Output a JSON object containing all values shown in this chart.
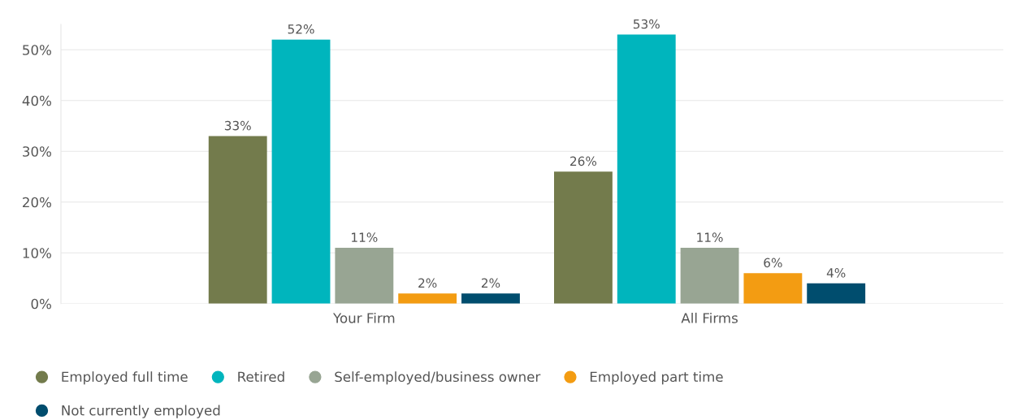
{
  "chart_data": {
    "type": "bar",
    "categories": [
      "Your Firm",
      "All Firms"
    ],
    "series": [
      {
        "name": "Employed full time",
        "color": "#737b4c",
        "values": [
          33,
          26
        ],
        "value_labels": [
          "33%",
          "26%"
        ]
      },
      {
        "name": "Retired",
        "color": "#00b5bd",
        "values": [
          52,
          53
        ],
        "value_labels": [
          "52%",
          "53%"
        ]
      },
      {
        "name": "Self-employed/business owner",
        "color": "#98a593",
        "values": [
          11,
          11
        ],
        "value_labels": [
          "11%",
          "11%"
        ]
      },
      {
        "name": "Employed part time",
        "color": "#f39c12",
        "values": [
          2,
          6
        ],
        "value_labels": [
          "2%",
          "6%"
        ]
      },
      {
        "name": "Not currently employed",
        "color": "#004d6e",
        "values": [
          2,
          4
        ],
        "value_labels": [
          "2%",
          "4%"
        ]
      }
    ],
    "ylim": [
      0,
      55
    ],
    "yticks": [
      {
        "value": 0,
        "label": "0%"
      },
      {
        "value": 10,
        "label": "10%"
      },
      {
        "value": 20,
        "label": "20%"
      },
      {
        "value": 30,
        "label": "30%"
      },
      {
        "value": 40,
        "label": "40%"
      },
      {
        "value": 50,
        "label": "50%"
      }
    ],
    "grid": "y",
    "legend": "bottom",
    "marker": "circle"
  }
}
